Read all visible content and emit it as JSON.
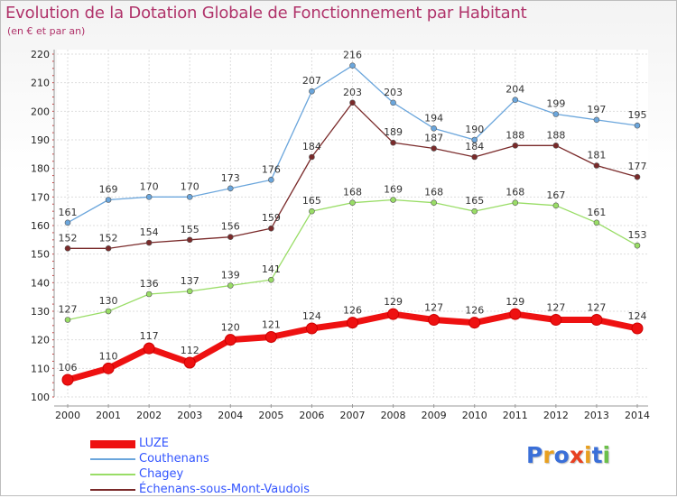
{
  "header": {
    "title": "Evolution de la Dotation Globale de Fonctionnement par Habitant",
    "subtitle": "(en € et par an)"
  },
  "logo": {
    "letters": [
      "P",
      "r",
      "o",
      "x",
      "i",
      "t",
      "i"
    ],
    "colors": [
      "#3a6fd8",
      "#e8a020",
      "#3a6fd8",
      "#e84020",
      "#e8a020",
      "#3a6fd8",
      "#6cc04a"
    ]
  },
  "chart_data": {
    "type": "line",
    "title": "Evolution de la Dotation Globale de Fonctionnement par Habitant",
    "subtitle": "(en € et par an)",
    "xlabel": "",
    "ylabel": "",
    "ylim": [
      100,
      220
    ],
    "yticks": [
      100,
      110,
      120,
      130,
      140,
      150,
      160,
      170,
      180,
      190,
      200,
      210,
      220
    ],
    "x": [
      "2000",
      "2001",
      "2002",
      "2003",
      "2004",
      "2005",
      "2006",
      "2007",
      "2008",
      "2009",
      "2010",
      "2011",
      "2012",
      "2013",
      "2014"
    ],
    "grid": true,
    "legend_position": "bottom-left",
    "series": [
      {
        "name": "LUZE",
        "color": "#ee1111",
        "values": [
          106,
          110,
          117,
          112,
          120,
          121,
          124,
          126,
          129,
          127,
          126,
          129,
          127,
          127,
          124
        ]
      },
      {
        "name": "Couthenans",
        "color": "#6ba6dc",
        "values": [
          161,
          169,
          170,
          170,
          173,
          176,
          207,
          216,
          203,
          194,
          190,
          204,
          199,
          197,
          195
        ]
      },
      {
        "name": "Chagey",
        "color": "#99dd66",
        "values": [
          127,
          130,
          136,
          137,
          139,
          141,
          165,
          168,
          169,
          168,
          165,
          168,
          167,
          161,
          153
        ]
      },
      {
        "name": "Échenans-sous-Mont-Vaudois",
        "color": "#7a2a2a",
        "values": [
          152,
          152,
          154,
          155,
          156,
          159,
          184,
          203,
          189,
          187,
          184,
          188,
          188,
          181,
          177
        ]
      }
    ]
  }
}
